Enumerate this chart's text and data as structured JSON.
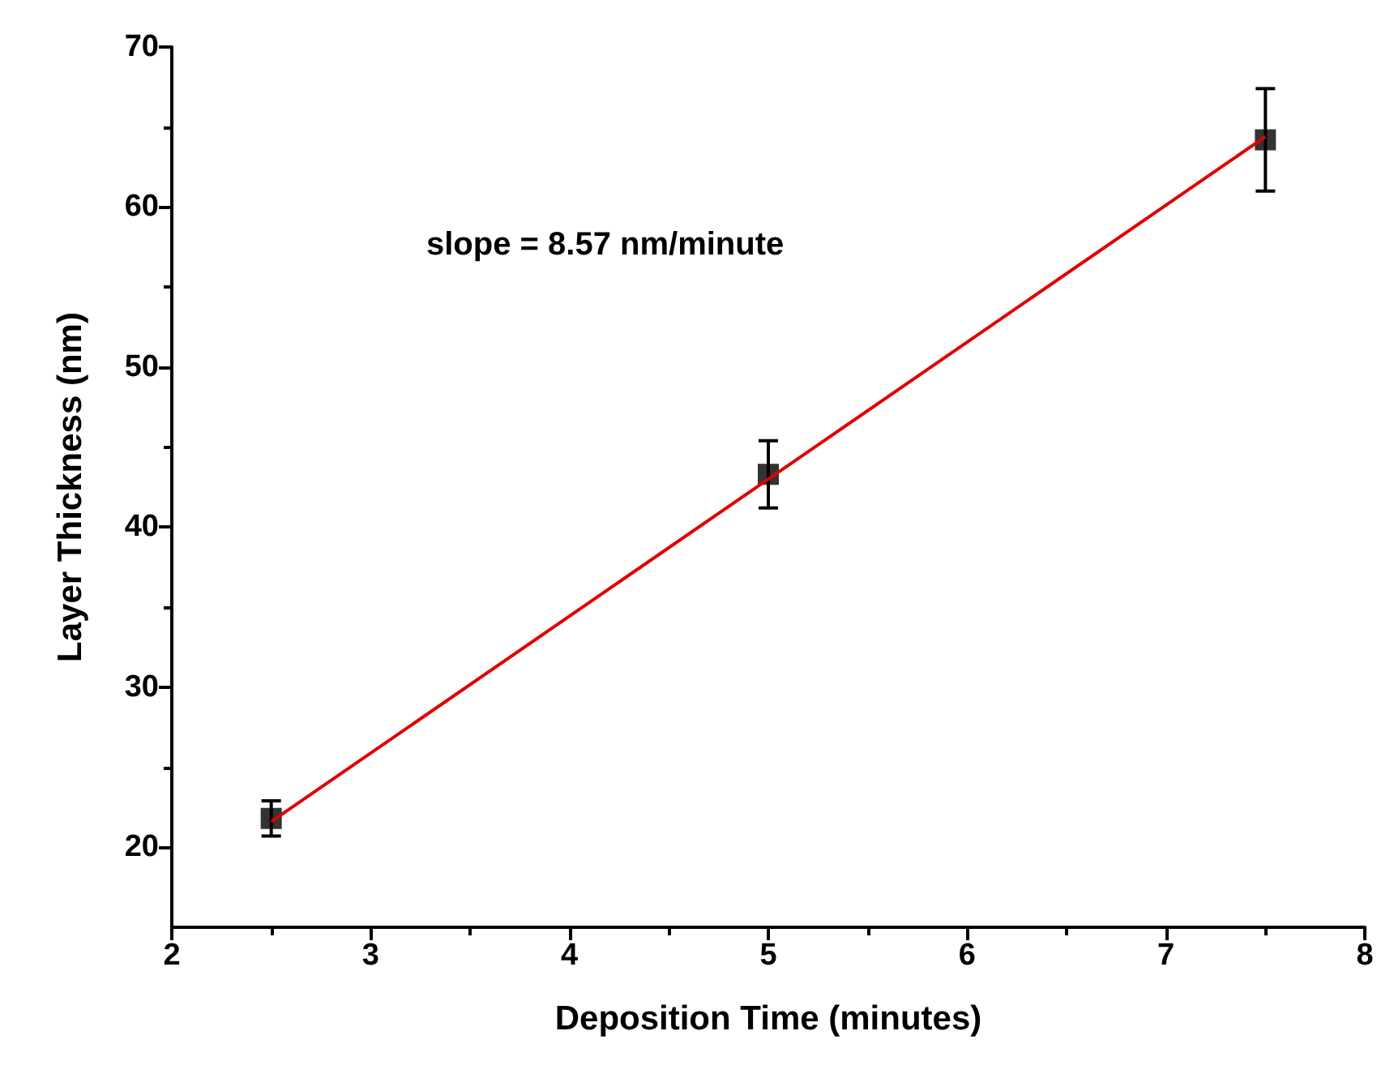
{
  "chart_data": {
    "type": "scatter",
    "xlabel": "Deposition Time (minutes)",
    "ylabel": "Layer Thickness (nm)",
    "annotations": [
      "slope = 8.57 nm/minute"
    ],
    "xlim": [
      2,
      8
    ],
    "xticks": [
      2,
      3,
      4,
      5,
      6,
      7,
      8
    ],
    "ylim": [
      15,
      70
    ],
    "yticks": [
      20,
      30,
      40,
      50,
      60,
      70
    ],
    "grid": false,
    "series": [
      {
        "color": "#000000",
        "marker": "square",
        "x": [
          2.5,
          5,
          7.5
        ],
        "values": [
          21.8,
          43.3,
          64.2
        ],
        "errors": [
          1.1,
          2.1,
          3.2
        ]
      },
      {
        "type": "line",
        "color": "#e00000",
        "marker": "none",
        "line_style": "solid",
        "x": [
          2.5,
          7.5
        ],
        "values": [
          21.6,
          64.4
        ]
      }
    ]
  }
}
